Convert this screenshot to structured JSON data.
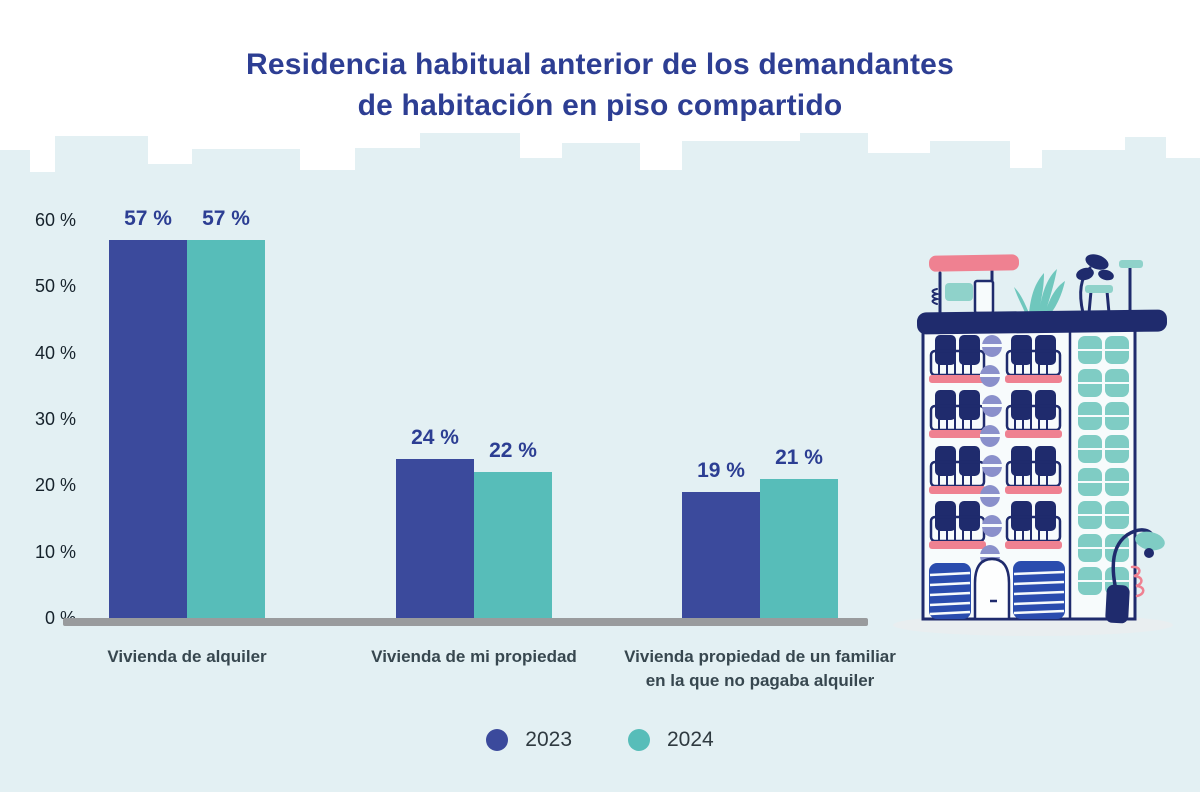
{
  "header": {
    "title_lines": [
      "Residencia habitual anterior de los demandantes",
      "de habitación en piso compartido"
    ]
  },
  "chart_data": {
    "type": "bar",
    "title": "Residencia habitual anterior de los demandantes de habitación en piso compartido",
    "categories": [
      "Vivienda de alquiler",
      "Vivienda de mi propiedad",
      "Vivienda propiedad de un familiar\nen la que no pagaba alquiler"
    ],
    "series": [
      {
        "name": "2023",
        "color": "#3b4a9c",
        "values": [
          57,
          24,
          19
        ]
      },
      {
        "name": "2024",
        "color": "#57bdb9",
        "values": [
          57,
          22,
          21
        ]
      }
    ],
    "value_suffix": " %",
    "ylim": [
      0,
      60
    ],
    "yticks": [
      0,
      10,
      20,
      30,
      40,
      50,
      60
    ],
    "ytick_suffix": " %",
    "xlabel": "",
    "ylabel": "",
    "grid": false,
    "legend_position": "bottom"
  },
  "colors": {
    "title": "#2d3e93",
    "panel_background": "#e3f0f3",
    "axis_baseline": "#999b9d",
    "axis_text": "#16222b",
    "category_text": "#37474f",
    "value_label": "#2c3e93",
    "series_2023": "#3b4a9c",
    "series_2024": "#57bdb9"
  },
  "illustration": {
    "name": "apartment building with balconies, rooftop plants and street lamp"
  }
}
